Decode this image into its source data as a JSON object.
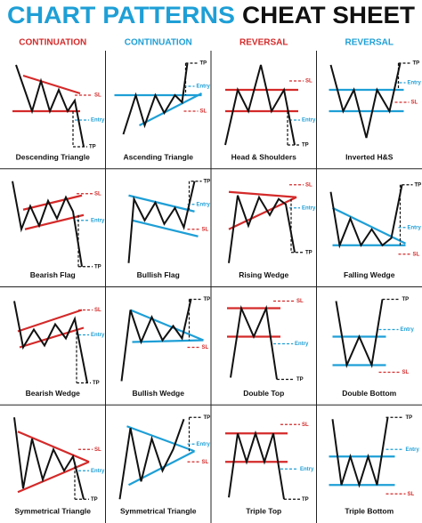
{
  "title": {
    "part1": "CHART PATTERNS",
    "part2": "CHEAT SHEET"
  },
  "headers": [
    "CONTINUATION",
    "CONTINUATION",
    "REVERSAL",
    "REVERSAL"
  ],
  "cells": [
    {
      "name": "Descending Triangle",
      "labels": [
        "SL",
        "Entry",
        "TP"
      ]
    },
    {
      "name": "Ascending Triangle",
      "labels": [
        "TP",
        "Entry",
        "SL"
      ]
    },
    {
      "name": "Head & Shoulders",
      "labels": [
        "SL",
        "Entry",
        "TP"
      ]
    },
    {
      "name": "Inverted H&S",
      "labels": [
        "TP",
        "Entry",
        "SL"
      ]
    },
    {
      "name": "Bearish Flag",
      "labels": [
        "SL",
        "Entry",
        "TP"
      ]
    },
    {
      "name": "Bullish Flag",
      "labels": [
        "TP",
        "Entry",
        "SL"
      ]
    },
    {
      "name": "Rising Wedge",
      "labels": [
        "SL",
        "Entry",
        "TP"
      ]
    },
    {
      "name": "Falling Wedge",
      "labels": [
        "TP",
        "Entry",
        "SL"
      ]
    },
    {
      "name": "Bearish Wedge",
      "labels": [
        "SL",
        "Entry",
        "TP"
      ]
    },
    {
      "name": "Bullish Wedge",
      "labels": [
        "TP",
        "SL"
      ]
    },
    {
      "name": "Double Top",
      "labels": [
        "SL",
        "Entry",
        "TP"
      ]
    },
    {
      "name": "Double Bottom",
      "labels": [
        "TP",
        "Entry",
        "SL"
      ]
    },
    {
      "name": "Symmetrical Triangle",
      "labels": [
        "SL",
        "Entry",
        "TP"
      ]
    },
    {
      "name": "Symmetrical Triangle",
      "labels": [
        "TP",
        "Entry",
        "SL"
      ]
    },
    {
      "name": "Triple Top",
      "labels": [
        "SL",
        "Entry",
        "TP"
      ]
    },
    {
      "name": "Triple Bottom",
      "labels": [
        "TP",
        "Entry",
        "SL"
      ]
    }
  ]
}
